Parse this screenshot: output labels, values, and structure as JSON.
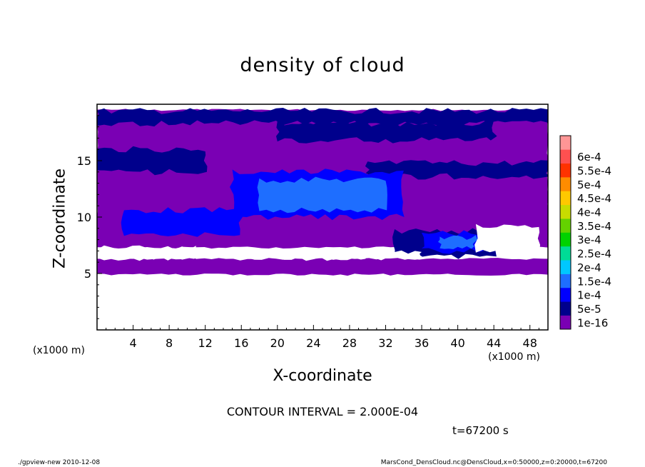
{
  "header": {
    "contour_text": "CONTOUR INTERVAL = 2.000E-04",
    "time_text": "t=67200 s"
  },
  "footer": {
    "left": "./gpview-new   2010-12-08",
    "right": "MarsCond_DensCloud.nc@DensCloud,x=0:50000,z=0:20000,t=67200"
  },
  "chart_data": {
    "type": "heatmap",
    "title": "density of cloud",
    "xlabel": "X-coordinate",
    "ylabel": "Z-coordinate",
    "x_unit_label": "(x1000 m)",
    "y_unit_label": "(x1000 m)",
    "xlim": [
      0,
      50
    ],
    "ylim": [
      0,
      20
    ],
    "x_ticks": [
      4,
      8,
      12,
      16,
      20,
      24,
      28,
      32,
      36,
      40,
      44,
      48
    ],
    "y_ticks": [
      5,
      10,
      15
    ],
    "colorbar": {
      "labels": [
        "1e-16",
        "5e-5",
        "1e-4",
        "1.5e-4",
        "2e-4",
        "2.5e-4",
        "3e-4",
        "3.5e-4",
        "4e-4",
        "4.5e-4",
        "5e-4",
        "5.5e-4",
        "6e-4"
      ],
      "colors": [
        "#7a00b4",
        "#00008c",
        "#0000ff",
        "#1e6eff",
        "#00c8ff",
        "#00dc96",
        "#00d200",
        "#64d200",
        "#c8dc00",
        "#ffc800",
        "#ff8c00",
        "#ff3200",
        "#ff5050",
        "#ff9696"
      ]
    },
    "regions": [
      {
        "level": 0,
        "x": [
          0,
          50
        ],
        "z": [
          4.9,
          6.3
        ]
      },
      {
        "level": 0,
        "x": [
          0,
          50
        ],
        "z": [
          7.3,
          19.5
        ]
      },
      {
        "level": 1,
        "x": [
          0,
          50
        ],
        "z": [
          18.3,
          19.4
        ]
      },
      {
        "level": 1,
        "x": [
          20,
          44
        ],
        "z": [
          16.8,
          18.3
        ]
      },
      {
        "level": 1,
        "x": [
          0,
          12
        ],
        "z": [
          14.0,
          16.0
        ]
      },
      {
        "level": 1,
        "x": [
          30,
          50
        ],
        "z": [
          13.6,
          14.8
        ]
      },
      {
        "level": 2,
        "x": [
          15,
          34
        ],
        "z": [
          10.0,
          14.0
        ]
      },
      {
        "level": 3,
        "x": [
          18,
          32
        ],
        "z": [
          10.6,
          13.3
        ]
      },
      {
        "level": 2,
        "x": [
          3,
          16
        ],
        "z": [
          8.4,
          10.6
        ]
      },
      {
        "level": 1,
        "x": [
          33,
          44
        ],
        "z": [
          6.5,
          8.8
        ]
      },
      {
        "level": 2,
        "x": [
          36,
          43
        ],
        "z": [
          7.0,
          8.6
        ]
      },
      {
        "level": 3,
        "x": [
          38,
          42
        ],
        "z": [
          7.4,
          8.2
        ]
      }
    ],
    "gaps": [
      {
        "x": [
          0,
          11
        ],
        "z": [
          6.3,
          7.3
        ]
      },
      {
        "x": [
          11,
          24
        ],
        "z": [
          6.3,
          7.0
        ]
      },
      {
        "x": [
          24,
          30
        ],
        "z": [
          6.3,
          6.8
        ]
      },
      {
        "x": [
          42,
          49
        ],
        "z": [
          7.0,
          9.2
        ]
      },
      {
        "x": [
          30,
          36
        ],
        "z": [
          6.3,
          6.9
        ]
      }
    ]
  }
}
